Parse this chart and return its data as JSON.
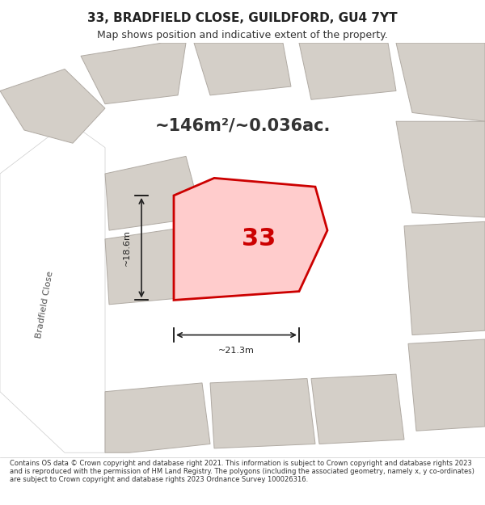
{
  "title_line1": "33, BRADFIELD CLOSE, GUILDFORD, GU4 7YT",
  "title_line2": "Map shows position and indicative extent of the property.",
  "area_text": "~146m²/~0.036ac.",
  "label_number": "33",
  "dim_width": "~21.3m",
  "dim_height": "~18.6m",
  "footer_text": "Contains OS data © Crown copyright and database right 2021. This information is subject to Crown copyright and database rights 2023 and is reproduced with the permission of HM Land Registry. The polygons (including the associated geometry, namely x, y co-ordinates) are subject to Crown copyright and database rights 2023 Ordnance Survey 100026316.",
  "bg_color": "#f0ede8",
  "map_bg": "#e8e4de",
  "road_color": "#ffffff",
  "building_fill": "#d4cfc8",
  "building_edge": "#b0aaa3",
  "highlight_fill": "#ffcccc",
  "highlight_edge": "#cc0000",
  "street_label": "Bradfield Close",
  "footer_bg": "#ffffff"
}
